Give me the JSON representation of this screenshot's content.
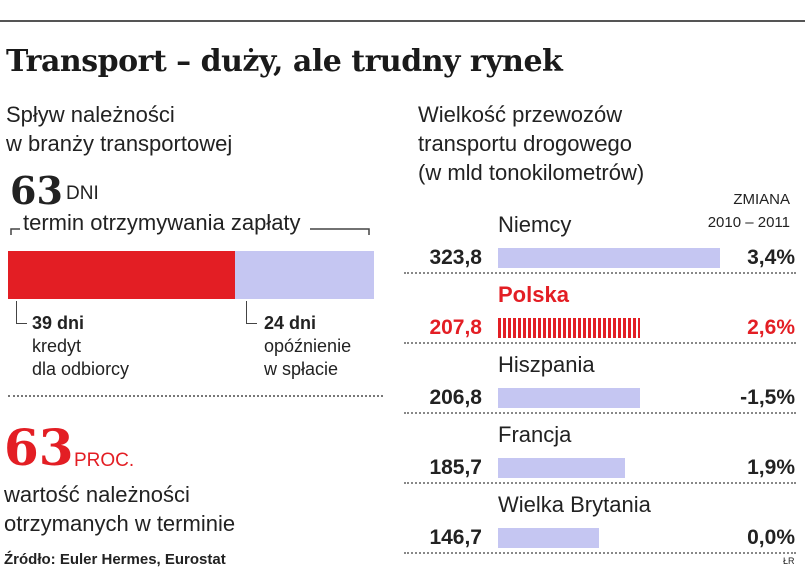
{
  "title": "Transport – duży, ale trudny rynek",
  "left": {
    "subtitle_line1": "Spływ należności",
    "subtitle_line2": "w branży transportowej",
    "total_days": "63",
    "total_unit": "DNI",
    "total_label": "termin otrzymywania zapłaty",
    "segments": [
      {
        "days": "39 dni",
        "line1": "kredyt",
        "line2": "dla odbiorcy",
        "value": 39,
        "color": "#e31e24"
      },
      {
        "days": "24 dni",
        "line1": "opóźnienie",
        "line2": "w spłacie",
        "value": 24,
        "color": "#c5c6f2"
      }
    ],
    "percent_value": "63",
    "percent_unit": "PROC.",
    "percent_line1": "wartość należności",
    "percent_line2": "otrzymanych w terminie"
  },
  "right": {
    "subtitle_line1": "Wielkość przewozów",
    "subtitle_line2": "transportu drogowego",
    "subtitle_line3": "(w mld tonokilometrów)",
    "change_header1": "ZMIANA",
    "change_header2": "2010 – 2011"
  },
  "source": "Źródło: Euler Hermes, Eurostat",
  "credit": "ŁR",
  "chart_data": {
    "type": "bar",
    "orientation": "horizontal",
    "categories": [
      "Niemcy",
      "Polska",
      "Hiszpania",
      "Francja",
      "Wielka Brytania"
    ],
    "values": [
      323.8,
      207.8,
      206.8,
      185.7,
      146.7
    ],
    "value_labels": [
      "323,8",
      "207,8",
      "206,8",
      "185,7",
      "146,7"
    ],
    "changes": [
      "3,4%",
      "2,6%",
      "-1,5%",
      "1,9%",
      "0,0%"
    ],
    "highlight": "Polska",
    "highlight_color": "#e31e24",
    "bar_color": "#c5c6f2"
  }
}
